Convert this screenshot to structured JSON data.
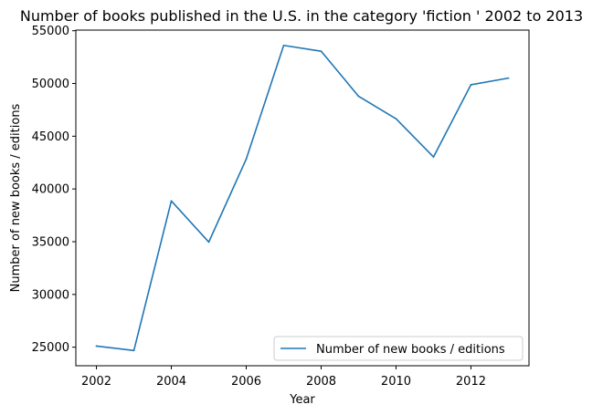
{
  "chart_data": {
    "type": "line",
    "title": "Number of books published in the U.S. in the category 'fiction ' 2002 to 2013",
    "xlabel": "Year",
    "ylabel": "Number of new books / editions",
    "x": [
      2002,
      2003,
      2004,
      2005,
      2006,
      2007,
      2008,
      2009,
      2010,
      2011,
      2012,
      2013
    ],
    "series": [
      {
        "name": "Number of new books / editions",
        "values": [
          25102,
          24685,
          38866,
          34964,
          42832,
          53610,
          53058,
          48784,
          46652,
          43033,
          49880,
          50510
        ],
        "color": "#1f77b4"
      }
    ],
    "xlim": [
      2001.45,
      2013.55
    ],
    "ylim": [
      23240,
      55060
    ],
    "xticks": [
      "2002",
      "2004",
      "2006",
      "2008",
      "2010",
      "2012"
    ],
    "yticks": [
      "25000",
      "30000",
      "35000",
      "40000",
      "45000",
      "50000",
      "55000"
    ],
    "grid": false,
    "legend_position": "lower-right"
  }
}
